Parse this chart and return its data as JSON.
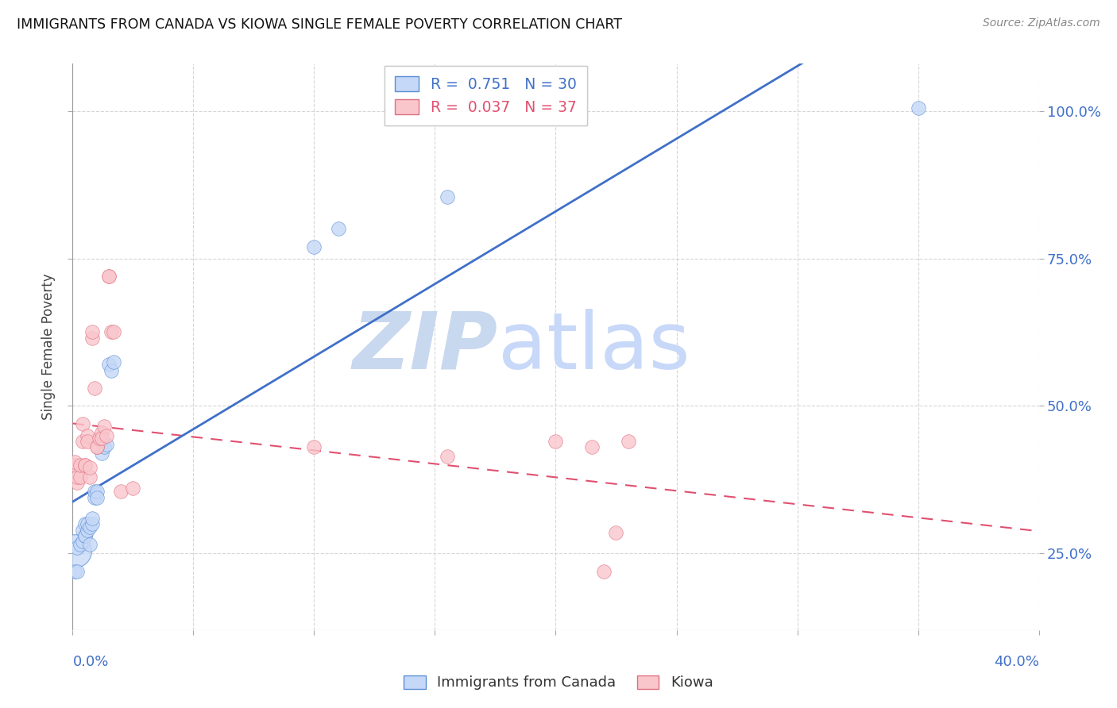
{
  "title": "IMMIGRANTS FROM CANADA VS KIOWA SINGLE FEMALE POVERTY CORRELATION CHART",
  "source": "Source: ZipAtlas.com",
  "ylabel": "Single Female Poverty",
  "legend_blue_r": "R =  0.751",
  "legend_blue_n": "N = 30",
  "legend_pink_r": "R =  0.037",
  "legend_pink_n": "N = 37",
  "blue_fill": "#c5d8f7",
  "blue_edge": "#5b8ed6",
  "pink_fill": "#f9c6cc",
  "pink_edge": "#e07080",
  "blue_line_color": "#4070c8",
  "pink_line_color": "#e05070",
  "watermark_zip_color": "#c8d8ee",
  "watermark_atlas_color": "#c8d8f8",
  "xlim": [
    0.0,
    0.4
  ],
  "ylim": [
    0.12,
    1.08
  ],
  "xtick_positions": [
    0.0,
    0.05,
    0.1,
    0.15,
    0.2,
    0.25,
    0.3,
    0.35,
    0.4
  ],
  "ytick_positions": [
    0.25,
    0.5,
    0.75,
    1.0
  ],
  "ytick_labels": [
    "25.0%",
    "50.0%",
    "75.0%",
    "100.0%"
  ],
  "blue_x": [
    0.001,
    0.002,
    0.002,
    0.003,
    0.004,
    0.004,
    0.005,
    0.005,
    0.005,
    0.006,
    0.006,
    0.007,
    0.007,
    0.008,
    0.008,
    0.009,
    0.009,
    0.01,
    0.01,
    0.012,
    0.012,
    0.013,
    0.014,
    0.015,
    0.016,
    0.017,
    0.1,
    0.11,
    0.155,
    0.35
  ],
  "blue_y": [
    0.22,
    0.22,
    0.26,
    0.265,
    0.27,
    0.29,
    0.28,
    0.28,
    0.3,
    0.29,
    0.3,
    0.265,
    0.295,
    0.3,
    0.31,
    0.345,
    0.355,
    0.355,
    0.345,
    0.42,
    0.44,
    0.43,
    0.435,
    0.57,
    0.56,
    0.575,
    0.77,
    0.8,
    0.855,
    1.005
  ],
  "blue_big_x": [
    0.001
  ],
  "blue_big_y": [
    0.255
  ],
  "pink_x": [
    0.001,
    0.001,
    0.002,
    0.002,
    0.003,
    0.003,
    0.004,
    0.004,
    0.005,
    0.005,
    0.006,
    0.006,
    0.007,
    0.007,
    0.008,
    0.008,
    0.009,
    0.01,
    0.01,
    0.011,
    0.012,
    0.012,
    0.013,
    0.014,
    0.015,
    0.015,
    0.016,
    0.017,
    0.02,
    0.025,
    0.1,
    0.155,
    0.2,
    0.215,
    0.22,
    0.225,
    0.23
  ],
  "pink_y": [
    0.4,
    0.405,
    0.37,
    0.38,
    0.38,
    0.4,
    0.44,
    0.47,
    0.4,
    0.4,
    0.45,
    0.44,
    0.38,
    0.395,
    0.615,
    0.625,
    0.53,
    0.43,
    0.43,
    0.445,
    0.455,
    0.445,
    0.465,
    0.45,
    0.72,
    0.72,
    0.625,
    0.625,
    0.355,
    0.36,
    0.43,
    0.415,
    0.44,
    0.43,
    0.22,
    0.285,
    0.44
  ]
}
